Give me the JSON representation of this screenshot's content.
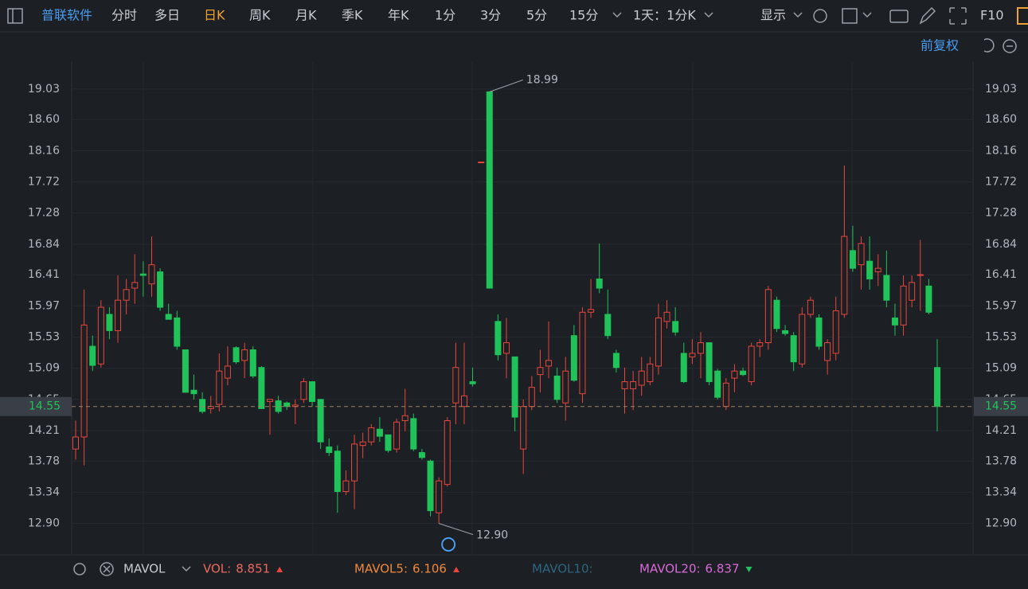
{
  "toolbar": {
    "title": "普联软件",
    "tabs": [
      {
        "label": "分时",
        "active": false
      },
      {
        "label": "多日",
        "active": false
      },
      {
        "label": "日K",
        "active": true
      },
      {
        "label": "周K",
        "active": false
      },
      {
        "label": "月K",
        "active": false
      },
      {
        "label": "季K",
        "active": false
      },
      {
        "label": "年K",
        "active": false
      },
      {
        "label": "1分",
        "active": false
      },
      {
        "label": "3分",
        "active": false
      },
      {
        "label": "5分",
        "active": false
      },
      {
        "label": "15分",
        "active": false
      }
    ],
    "period": "1天：1分K",
    "display": "显示",
    "f10": "F10",
    "adjust": "前复权"
  },
  "chart_data": {
    "type": "candlestick",
    "up_color": "#e8463d",
    "down_color": "#20c35a",
    "open": [
      13.95,
      14.12,
      15.4,
      15.15,
      15.85,
      15.62,
      16.05,
      16.22,
      16.42,
      16.28,
      16.45,
      15.85,
      15.8,
      15.35,
      14.78,
      14.65,
      14.52,
      14.58,
      14.95,
      15.38,
      15.2,
      15.35,
      15.1,
      14.62,
      14.63,
      14.6,
      14.55,
      14.65,
      14.9,
      14.65,
      13.98,
      13.92,
      13.35,
      13.5,
      14.0,
      14.05,
      14.23,
      14.15,
      13.95,
      14.35,
      14.38,
      13.9,
      13.78,
      13.05,
      13.45,
      14.6,
      14.55,
      14.9,
      17.99,
      18.99,
      15.75,
      15.3,
      15.25,
      13.95,
      14.55,
      15.0,
      15.12,
      14.98,
      14.6,
      15.55,
      14.73,
      15.88,
      16.35,
      15.85,
      15.3,
      14.8,
      14.8,
      14.85,
      14.9,
      15.12,
      15.75,
      15.75,
      15.3,
      15.25,
      15.3,
      15.45,
      15.05,
      14.55,
      14.95,
      15.05,
      14.9,
      15.4,
      15.45,
      16.05,
      15.62,
      15.55,
      15.15,
      15.85,
      15.8,
      15.2,
      15.3,
      15.85,
      16.75,
      16.55,
      16.6,
      16.45,
      16.4,
      15.8,
      15.7,
      16.05,
      16.4,
      16.25,
      15.1
    ],
    "high": [
      14.35,
      16.2,
      15.55,
      16.05,
      15.95,
      16.4,
      16.35,
      16.7,
      16.6,
      16.95,
      16.5,
      16.0,
      15.9,
      15.35,
      15.0,
      14.75,
      14.7,
      15.3,
      15.4,
      15.4,
      15.45,
      15.4,
      15.12,
      14.65,
      14.7,
      14.62,
      14.65,
      14.95,
      14.9,
      14.65,
      14.1,
      14.0,
      13.65,
      14.15,
      14.18,
      14.3,
      14.4,
      14.15,
      14.38,
      14.8,
      14.45,
      13.95,
      13.8,
      13.55,
      14.4,
      15.45,
      15.45,
      15.1,
      18.0,
      18.99,
      15.85,
      15.8,
      15.25,
      14.65,
      14.98,
      15.35,
      15.75,
      15.1,
      15.25,
      15.7,
      15.95,
      16.35,
      16.85,
      16.2,
      15.35,
      15.1,
      15.05,
      15.25,
      15.25,
      16.0,
      16.05,
      15.95,
      15.45,
      15.5,
      15.6,
      15.45,
      15.08,
      14.95,
      15.15,
      15.1,
      15.45,
      15.5,
      16.25,
      16.1,
      15.7,
      15.6,
      15.95,
      16.1,
      15.85,
      15.5,
      16.1,
      17.95,
      17.1,
      16.95,
      16.95,
      16.7,
      16.75,
      16.0,
      16.4,
      16.4,
      16.9,
      16.35,
      15.5
    ],
    "low": [
      13.8,
      13.72,
      15.05,
      15.1,
      15.5,
      15.45,
      15.85,
      16.0,
      16.1,
      16.1,
      15.9,
      15.78,
      15.35,
      14.75,
      14.65,
      14.45,
      14.45,
      14.48,
      14.85,
      15.15,
      14.95,
      14.95,
      14.52,
      14.15,
      14.45,
      14.5,
      14.3,
      14.6,
      14.55,
      13.95,
      13.85,
      13.05,
      13.3,
      13.1,
      13.82,
      14.0,
      14.05,
      13.9,
      13.9,
      14.2,
      13.92,
      13.8,
      13.0,
      12.9,
      13.42,
      14.3,
      14.3,
      14.83,
      17.99,
      16.22,
      15.2,
      14.95,
      14.2,
      13.6,
      14.5,
      14.75,
      14.95,
      14.6,
      14.35,
      14.9,
      14.6,
      15.8,
      16.15,
      15.5,
      15.03,
      14.45,
      14.5,
      14.7,
      14.85,
      15.0,
      15.65,
      15.55,
      14.88,
      15.15,
      14.95,
      14.85,
      14.65,
      14.5,
      14.75,
      14.98,
      14.85,
      15.25,
      15.35,
      15.6,
      15.55,
      15.05,
      15.1,
      15.8,
      15.35,
      15.0,
      15.2,
      15.8,
      16.45,
      16.2,
      16.2,
      16.25,
      15.95,
      15.55,
      15.55,
      15.95,
      15.9,
      15.85,
      14.2
    ],
    "close": [
      14.12,
      15.7,
      15.13,
      15.95,
      15.62,
      16.05,
      16.2,
      16.3,
      16.4,
      16.55,
      15.95,
      15.78,
      15.4,
      14.75,
      14.73,
      14.48,
      14.55,
      15.05,
      15.12,
      15.18,
      15.35,
      14.98,
      14.52,
      14.65,
      14.48,
      14.55,
      14.57,
      14.9,
      14.62,
      14.05,
      13.9,
      13.35,
      13.5,
      14.02,
      14.05,
      14.25,
      14.13,
      13.93,
      14.33,
      14.42,
      13.95,
      13.83,
      13.08,
      13.5,
      14.35,
      15.1,
      14.7,
      14.87,
      18.0,
      16.22,
      15.28,
      15.45,
      14.4,
      14.55,
      14.82,
      15.1,
      15.2,
      14.65,
      15.05,
      14.92,
      15.88,
      15.92,
      16.22,
      15.55,
      15.1,
      14.9,
      14.9,
      15.05,
      15.15,
      15.8,
      15.88,
      15.6,
      14.9,
      15.3,
      15.45,
      14.9,
      14.68,
      14.88,
      15.05,
      15.0,
      15.4,
      15.45,
      16.2,
      15.65,
      15.58,
      15.18,
      15.85,
      16.05,
      15.4,
      15.45,
      15.9,
      16.95,
      16.5,
      16.85,
      16.35,
      16.5,
      16.05,
      15.7,
      16.25,
      16.3,
      16.41,
      15.88,
      14.55
    ],
    "ylim": [
      12.48,
      19.41
    ],
    "yticks": [
      {
        "value": 12.9,
        "label": "12.90"
      },
      13.34,
      13.78,
      14.21,
      14.65,
      15.09,
      15.53,
      15.97,
      16.41,
      16.84,
      17.28,
      17.72,
      18.16,
      {
        "value": 18.6,
        "label": "18.60"
      },
      19.03
    ],
    "grid": true,
    "last_price": 14.55,
    "high_label": 18.99,
    "low_label": {
      "value": 12.9,
      "label": "12.90"
    },
    "indicator": {
      "name": "MAVOL",
      "items": [
        {
          "label": "VOL:",
          "value": 8.851,
          "color": "#ea6a5e"
        },
        {
          "label": "MAVOL5:",
          "value": 6.106,
          "color": "#f0893c"
        },
        {
          "label": "MAVOL10:",
          "value": null,
          "color": "#2c6680"
        },
        {
          "label": "MAVOL20:",
          "value": 6.837,
          "color": "#d86bd8"
        }
      ]
    }
  }
}
